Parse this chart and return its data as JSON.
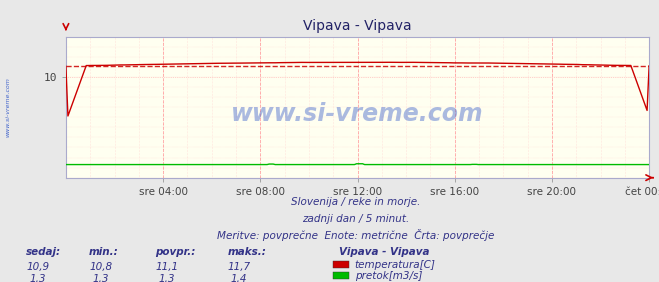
{
  "title": "Vipava - Vipava",
  "bg_color": "#e8e8e8",
  "plot_bg_color": "#fffff0",
  "watermark": "www.si-vreme.com",
  "subtitle_lines": [
    "Slovenija / reke in morje.",
    "zadnji dan / 5 minut.",
    "Meritve: povprečne  Enote: metrične  Črta: povprečje"
  ],
  "xlabel_ticks": [
    "sre 04:00",
    "sre 08:00",
    "sre 12:00",
    "sre 16:00",
    "sre 20:00",
    "čet 00:00"
  ],
  "xlabel_tick_positions": [
    0.1667,
    0.3333,
    0.5,
    0.6667,
    0.8333,
    1.0
  ],
  "ylim": [
    0,
    14
  ],
  "yticks": [
    10
  ],
  "temp_color": "#cc0000",
  "flow_color": "#00bb00",
  "avg_line_color": "#cc0000",
  "temp_avg": 11.1,
  "flow_avg": 1.3,
  "legend_title": "Vipava - Vipava",
  "legend_entries": [
    {
      "label": "temperatura[C]",
      "color": "#cc0000"
    },
    {
      "label": "pretok[m3/s]",
      "color": "#00bb00"
    }
  ],
  "table_headers": [
    "sedaj:",
    "min.:",
    "povpr.:",
    "maks.:"
  ],
  "table_data": [
    [
      "10,9",
      "10,8",
      "11,1",
      "11,7"
    ],
    [
      "1,3",
      "1,3",
      "1,3",
      "1,4"
    ]
  ],
  "sidebar_text": "www.si-vreme.com",
  "sidebar_color": "#4466cc",
  "title_color": "#222266",
  "text_color": "#333388",
  "spine_color": "#aaaacc"
}
